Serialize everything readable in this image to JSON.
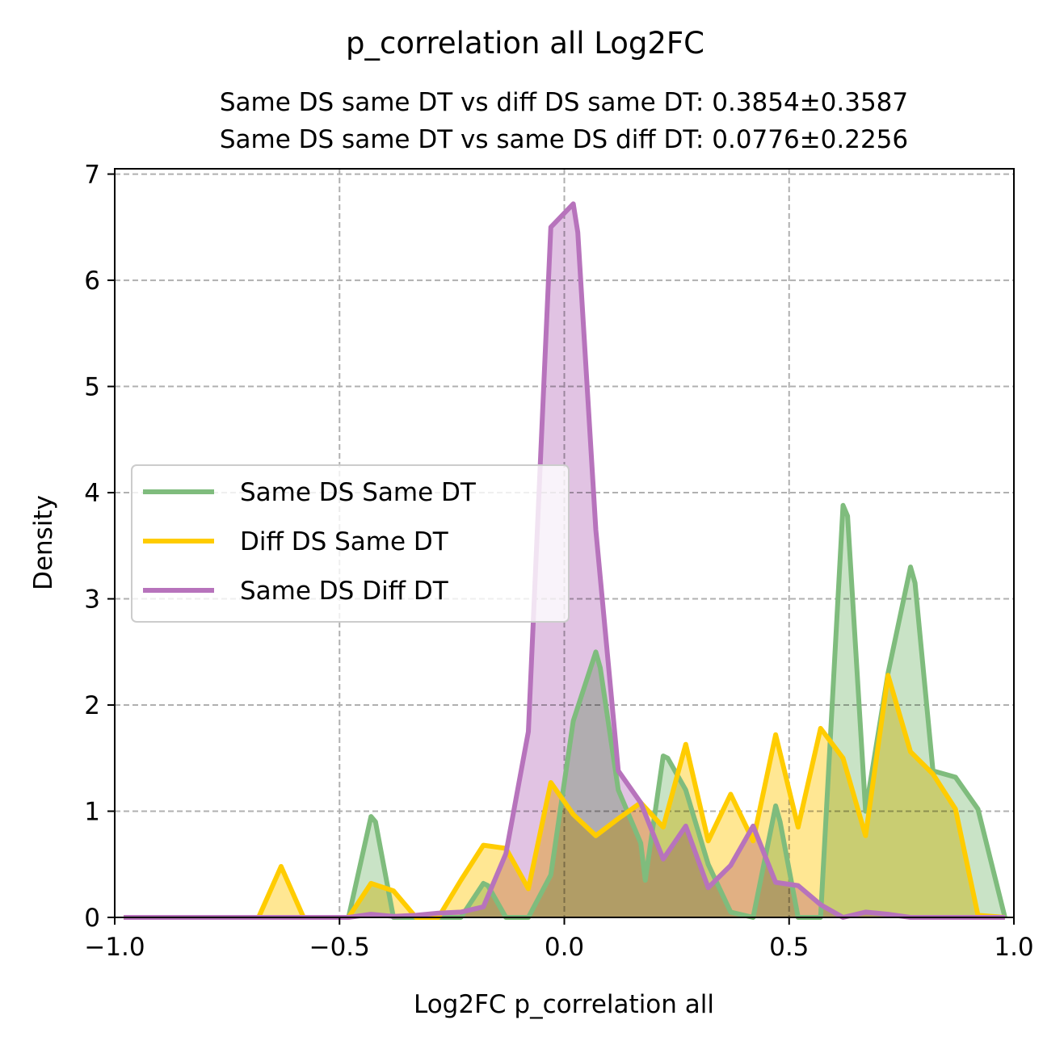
{
  "chart_data": {
    "type": "area",
    "title": "p_correlation all Log2FC",
    "subtitle_lines": [
      "Same DS same DT vs diff DS same DT: 0.3854±0.3587",
      "Same DS same DT vs same DS diff DT: 0.0776±0.2256"
    ],
    "xlabel": "Log2FC p_correlation all",
    "ylabel": "Density",
    "xlim": [
      -1.0,
      1.0
    ],
    "ylim": [
      0,
      7.05
    ],
    "xticks": [
      -1.0,
      -0.5,
      0.0,
      0.5,
      1.0
    ],
    "xtick_labels": [
      "−1.0",
      "−0.5",
      "0.0",
      "0.5",
      "1.0"
    ],
    "yticks": [
      0,
      1,
      2,
      3,
      4,
      5,
      6,
      7
    ],
    "ytick_labels": [
      "0",
      "1",
      "2",
      "3",
      "4",
      "5",
      "6",
      "7"
    ],
    "grid": true,
    "legend_position": "center-left",
    "series": [
      {
        "name": "Same DS Same DT",
        "color": "#7fbc7d",
        "fill_color": "#bfdebc",
        "x": [
          -0.98,
          -0.48,
          -0.43,
          -0.42,
          -0.38,
          -0.33,
          -0.28,
          -0.23,
          -0.18,
          -0.17,
          -0.13,
          -0.08,
          -0.03,
          0.02,
          0.07,
          0.08,
          0.12,
          0.17,
          0.18,
          0.22,
          0.23,
          0.27,
          0.32,
          0.37,
          0.42,
          0.47,
          0.48,
          0.52,
          0.57,
          0.62,
          0.63,
          0.67,
          0.72,
          0.77,
          0.78,
          0.82,
          0.87,
          0.92,
          0.98
        ],
        "y": [
          0,
          0,
          0.95,
          0.9,
          0,
          0,
          0,
          0,
          0.32,
          0.3,
          0,
          0,
          0.4,
          1.85,
          2.5,
          2.35,
          1.2,
          0.7,
          0.35,
          1.52,
          1.5,
          1.2,
          0.5,
          0.05,
          0,
          1.05,
          0.9,
          0,
          0,
          3.88,
          3.78,
          1.0,
          2.3,
          3.3,
          3.15,
          1.38,
          1.32,
          1.02,
          0
        ]
      },
      {
        "name": "Diff DS Same DT",
        "color": "#ffcc00",
        "fill_color": "#ffe380",
        "x": [
          -0.98,
          -0.68,
          -0.63,
          -0.58,
          -0.48,
          -0.43,
          -0.38,
          -0.33,
          -0.28,
          -0.23,
          -0.18,
          -0.13,
          -0.08,
          -0.03,
          0.02,
          0.07,
          0.12,
          0.17,
          0.22,
          0.27,
          0.32,
          0.37,
          0.42,
          0.47,
          0.52,
          0.57,
          0.62,
          0.67,
          0.72,
          0.77,
          0.82,
          0.87,
          0.92,
          0.98
        ],
        "y": [
          0,
          0,
          0.48,
          0,
          0,
          0.32,
          0.25,
          0,
          0,
          0.35,
          0.68,
          0.65,
          0.27,
          1.27,
          0.97,
          0.77,
          0.93,
          1.08,
          0.85,
          1.63,
          0.72,
          1.16,
          0.72,
          1.72,
          0.85,
          1.78,
          1.5,
          0.77,
          2.28,
          1.56,
          1.35,
          1.02,
          0.02,
          0
        ]
      },
      {
        "name": "Same DS Diff DT",
        "color": "#b773bc",
        "fill_color": "#dcb8de",
        "x": [
          -0.98,
          -0.48,
          -0.43,
          -0.38,
          -0.33,
          -0.28,
          -0.23,
          -0.18,
          -0.13,
          -0.08,
          -0.03,
          0.02,
          0.03,
          0.07,
          0.12,
          0.17,
          0.22,
          0.27,
          0.32,
          0.37,
          0.42,
          0.47,
          0.52,
          0.57,
          0.62,
          0.67,
          0.72,
          0.77,
          0.82,
          0.98
        ],
        "y": [
          0,
          0,
          0.03,
          0.01,
          0.02,
          0.04,
          0.05,
          0.1,
          0.6,
          1.75,
          6.5,
          6.72,
          6.45,
          3.65,
          1.38,
          1.08,
          0.55,
          0.86,
          0.28,
          0.49,
          0.86,
          0.33,
          0.3,
          0.12,
          0,
          0.05,
          0.03,
          0,
          0,
          0
        ]
      }
    ]
  }
}
